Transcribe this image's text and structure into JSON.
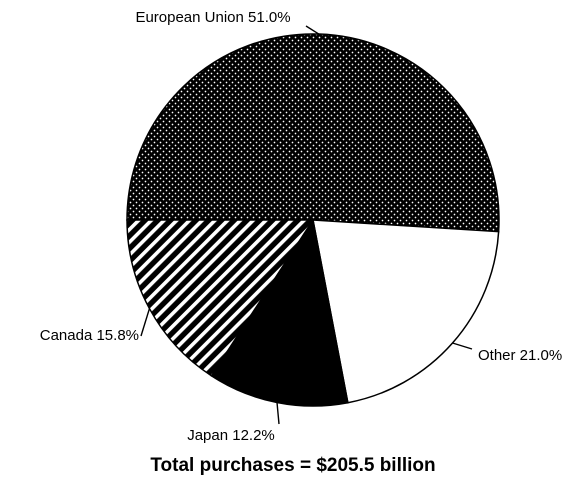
{
  "chart_data": {
    "type": "pie",
    "slices": [
      {
        "label": "European Union 51.0%",
        "value": 51.0,
        "fill": "dots"
      },
      {
        "label": "Other 21.0%",
        "value": 21.0,
        "fill": "#ffffff"
      },
      {
        "label": "Japan 12.2%",
        "value": 12.2,
        "fill": "#000000"
      },
      {
        "label": "Canada 15.8%",
        "value": 15.8,
        "fill": "diagonal-stripes"
      }
    ],
    "caption": "Total purchases = $205.5 billion",
    "legend": "none"
  }
}
